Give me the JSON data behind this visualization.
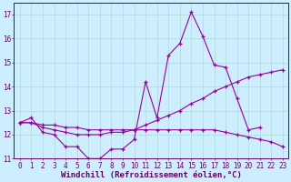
{
  "x": [
    0,
    1,
    2,
    3,
    4,
    5,
    6,
    7,
    8,
    9,
    10,
    11,
    12,
    13,
    14,
    15,
    16,
    17,
    18,
    19,
    20,
    21,
    22,
    23
  ],
  "line1": [
    12.5,
    12.7,
    12.1,
    12.0,
    11.5,
    11.5,
    11.0,
    11.0,
    11.4,
    11.4,
    11.8,
    14.2,
    12.7,
    15.3,
    15.8,
    17.1,
    16.1,
    14.9,
    14.8,
    13.5,
    12.2,
    12.3,
    null,
    null
  ],
  "line2": [
    12.5,
    12.5,
    12.3,
    12.2,
    12.1,
    12.0,
    12.0,
    12.0,
    12.1,
    12.1,
    12.2,
    12.4,
    12.6,
    12.8,
    13.0,
    13.3,
    13.5,
    13.8,
    14.0,
    14.2,
    14.4,
    14.5,
    14.6,
    14.7
  ],
  "line3": [
    12.5,
    12.5,
    12.4,
    12.4,
    12.3,
    12.3,
    12.2,
    12.2,
    12.2,
    12.2,
    12.2,
    12.2,
    12.2,
    12.2,
    12.2,
    12.2,
    12.2,
    12.2,
    12.1,
    12.0,
    11.9,
    11.8,
    11.7,
    11.5
  ],
  "line_color": "#990099",
  "bg_color": "#cceeff",
  "grid_color": "#b0d8d8",
  "xlabel": "Windchill (Refroidissement éolien,°C)",
  "ylim": [
    11,
    17.5
  ],
  "xlim": [
    -0.5,
    23.5
  ],
  "yticks": [
    11,
    12,
    13,
    14,
    15,
    16,
    17
  ],
  "xticks": [
    0,
    1,
    2,
    3,
    4,
    5,
    6,
    7,
    8,
    9,
    10,
    11,
    12,
    13,
    14,
    15,
    16,
    17,
    18,
    19,
    20,
    21,
    22,
    23
  ],
  "xlabel_color": "#660066",
  "tick_color": "#660066",
  "axis_label_fontsize": 6.5,
  "tick_fontsize": 5.5
}
